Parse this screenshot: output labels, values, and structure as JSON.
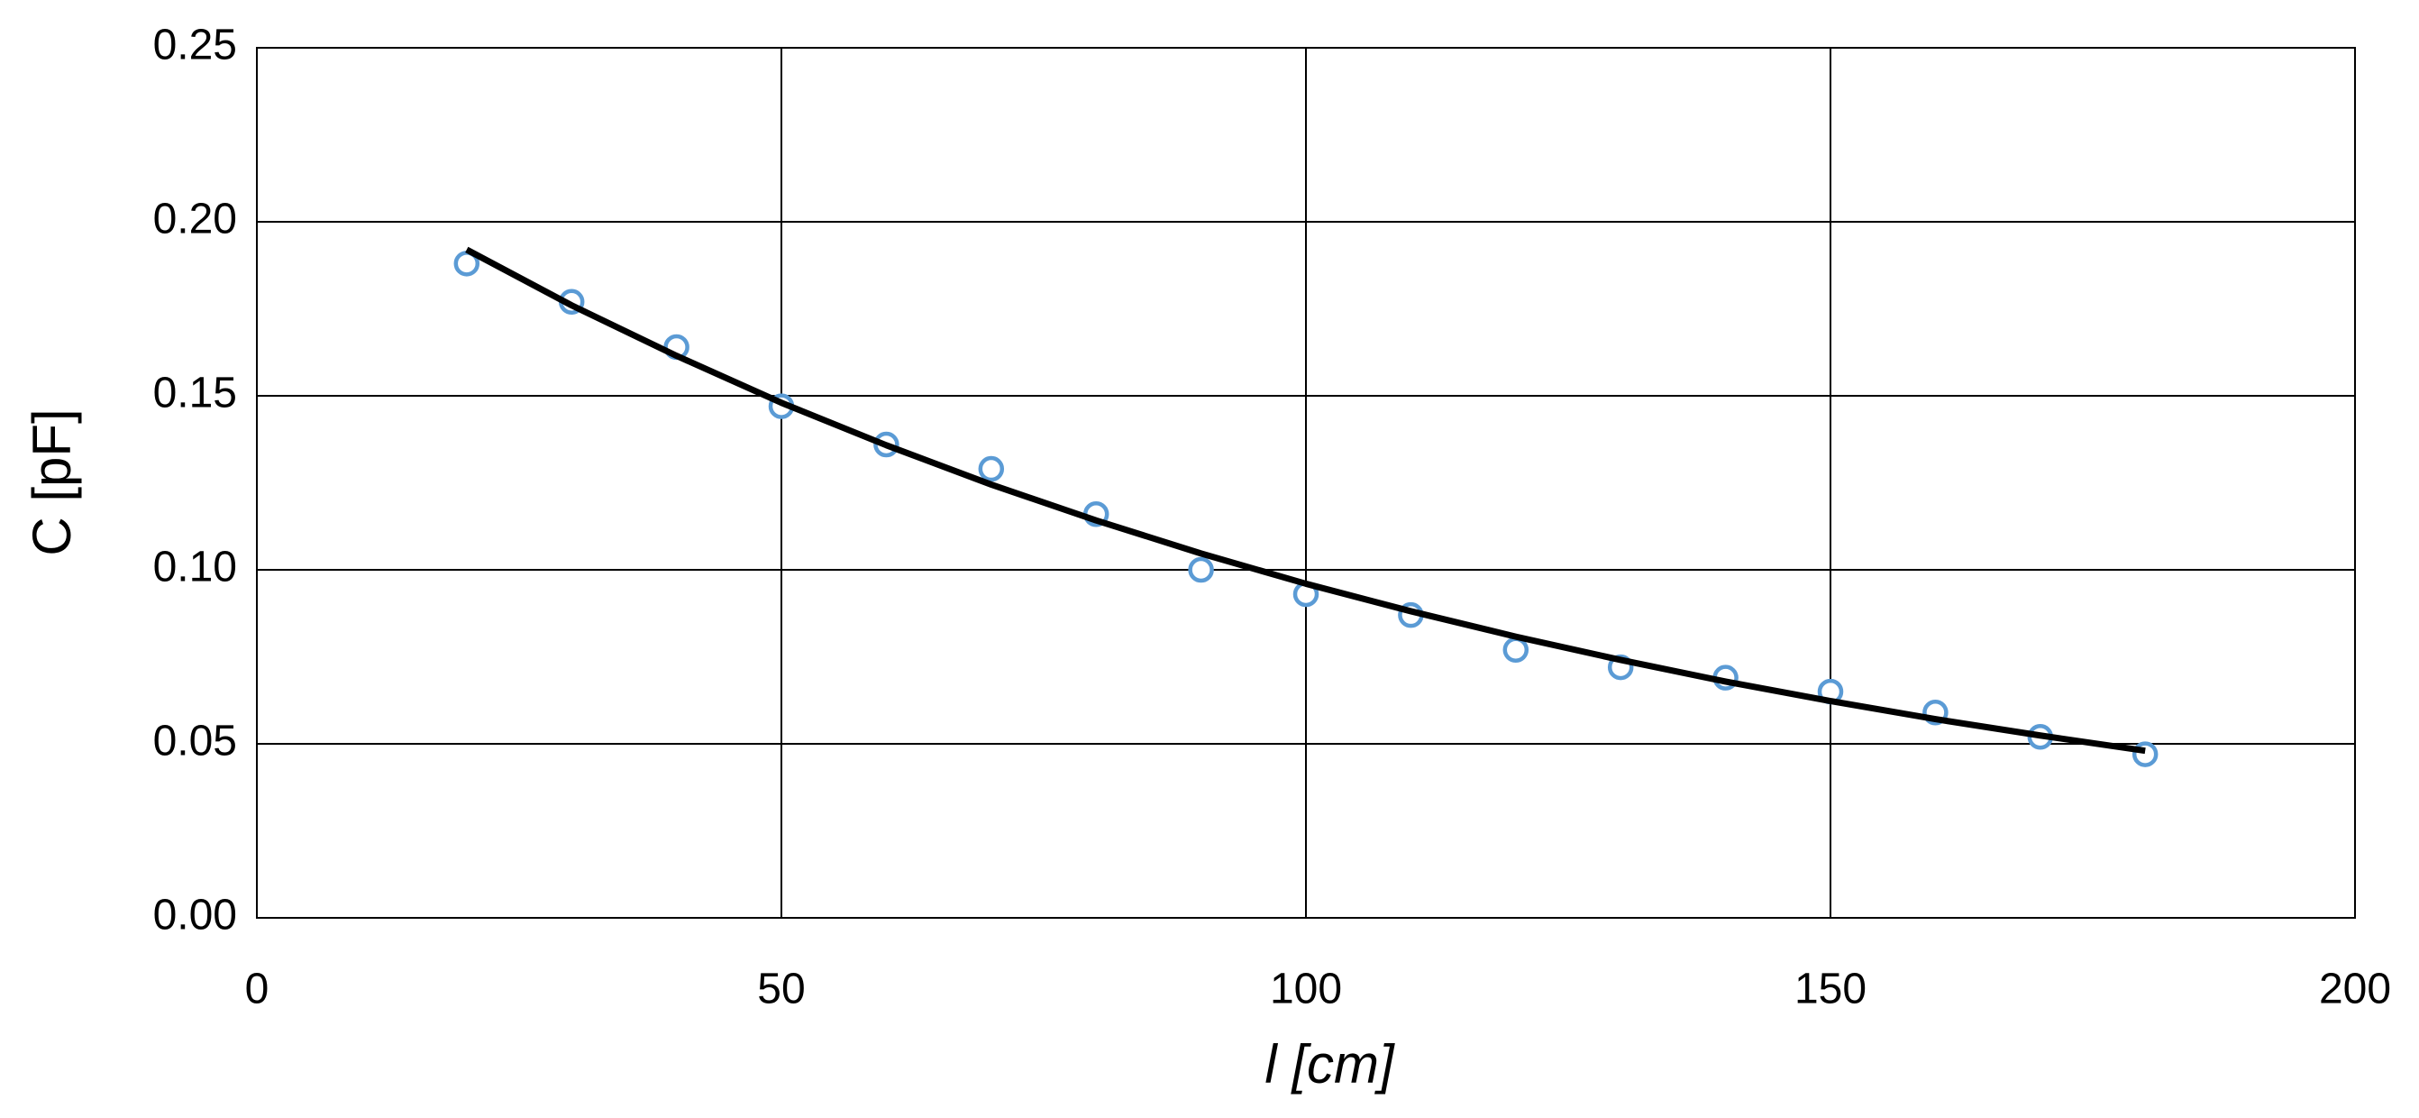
{
  "chart_data": {
    "type": "scatter",
    "xlabel": "l [cm]",
    "ylabel": "C [pF]",
    "xlim": [
      0,
      200
    ],
    "xticks": [
      0,
      50,
      100,
      150,
      200
    ],
    "ylim": [
      0,
      0.25
    ],
    "yticks": [
      {
        "value": 0,
        "label": "0.00"
      },
      {
        "value": 0.05,
        "label": "0.05"
      },
      {
        "value": 0.1,
        "label": "0.10"
      },
      {
        "value": 0.15,
        "label": "0.15"
      },
      {
        "value": 0.2,
        "label": "0.20"
      },
      0.25
    ],
    "grid": true,
    "series": [
      {
        "style": "markers",
        "color": "#5b9bd5",
        "x": [
          20,
          30,
          40,
          50,
          60,
          70,
          80,
          90,
          100,
          110,
          120,
          130,
          140,
          150,
          160,
          170,
          180
        ],
        "values": [
          0.188,
          0.177,
          0.164,
          0.147,
          0.136,
          0.129,
          0.116,
          0.1,
          0.093,
          0.087,
          0.077,
          0.072,
          0.069,
          0.065,
          0.059,
          0.052,
          0.047
        ]
      },
      {
        "style": "line",
        "color": "#000000",
        "x": [
          20,
          30,
          40,
          50,
          60,
          70,
          80,
          90,
          100,
          110,
          120,
          130,
          140,
          150,
          160,
          170,
          180
        ],
        "values": [
          0.192,
          0.176,
          0.1615,
          0.148,
          0.1358,
          0.1245,
          0.1142,
          0.1047,
          0.096,
          0.0881,
          0.0808,
          0.0741,
          0.0679,
          0.0623,
          0.0571,
          0.0524,
          0.048
        ]
      }
    ]
  }
}
